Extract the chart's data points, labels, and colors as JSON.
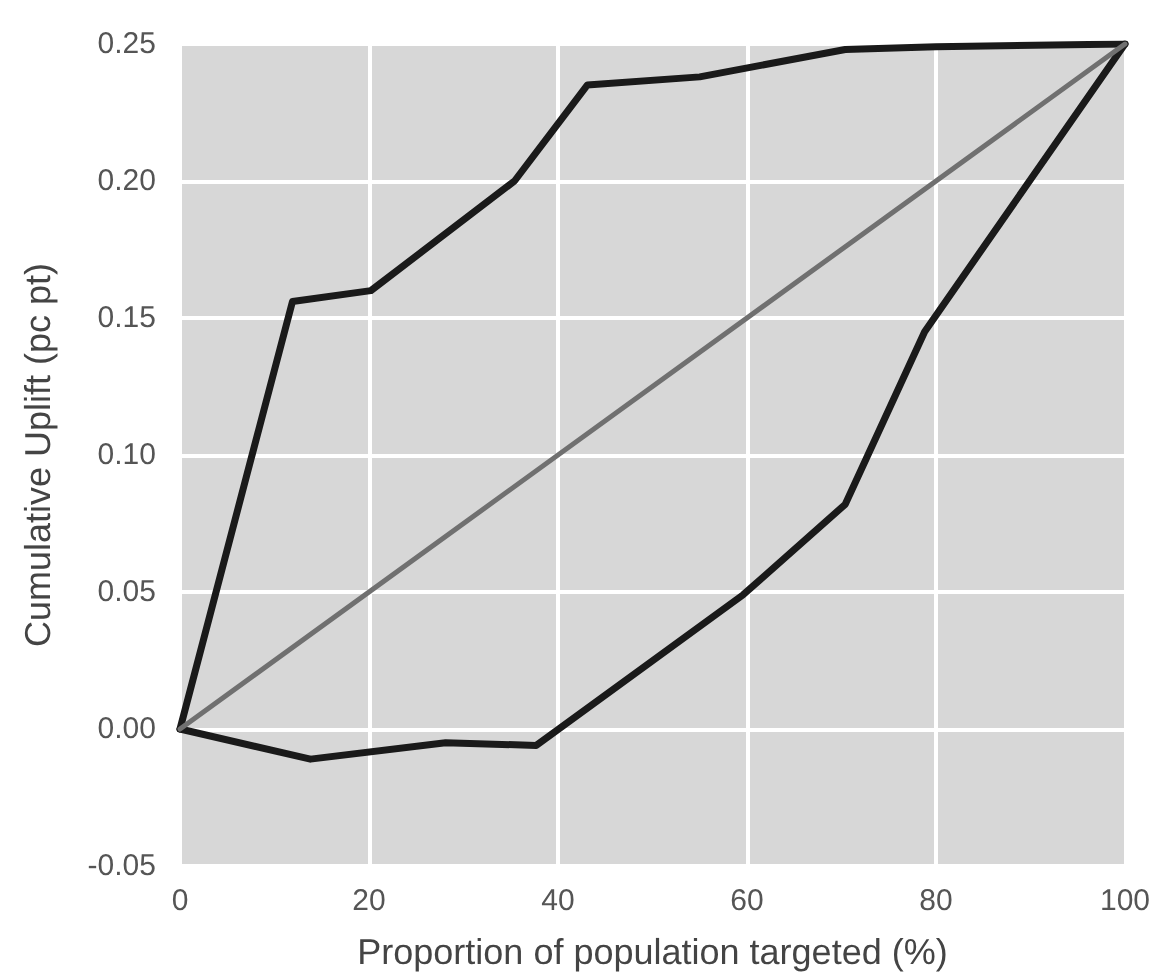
{
  "chart_data": {
    "type": "line",
    "xlabel": "Proportion of population targeted (%)",
    "ylabel": "Cumulative Uplift (pc pt)",
    "series": [
      {
        "color": "#1a1a1a",
        "x": [
          0,
          11.9,
          20.2,
          35.4,
          43.1,
          55,
          70.4,
          80,
          100
        ],
        "values": [
          0,
          0.156,
          0.16,
          0.2,
          0.235,
          0.238,
          0.248,
          0.249,
          0.25
        ]
      },
      {
        "color": "#1a1a1a",
        "x": [
          0,
          13.8,
          28.1,
          37.7,
          59.6,
          70.4,
          78.8,
          100
        ],
        "values": [
          0,
          -0.011,
          -0.005,
          -0.006,
          0.049,
          0.082,
          0.145,
          0.25
        ]
      },
      {
        "color": "#707070",
        "x": [
          0,
          100
        ],
        "values": [
          0,
          0.25
        ]
      }
    ],
    "xlim": [
      0,
      100
    ],
    "xticks": [
      0,
      20,
      40,
      60,
      80,
      100
    ],
    "ylim": [
      -0.05,
      0.25
    ],
    "yticks": [
      -0.05,
      {
        "value": 0,
        "label": "0.00"
      },
      0.05,
      {
        "value": 0.1,
        "label": "0.10"
      },
      0.15,
      {
        "value": 0.2,
        "label": "0.20"
      },
      0.25
    ],
    "grid": true,
    "marker": "none",
    "line_style": "solid"
  }
}
